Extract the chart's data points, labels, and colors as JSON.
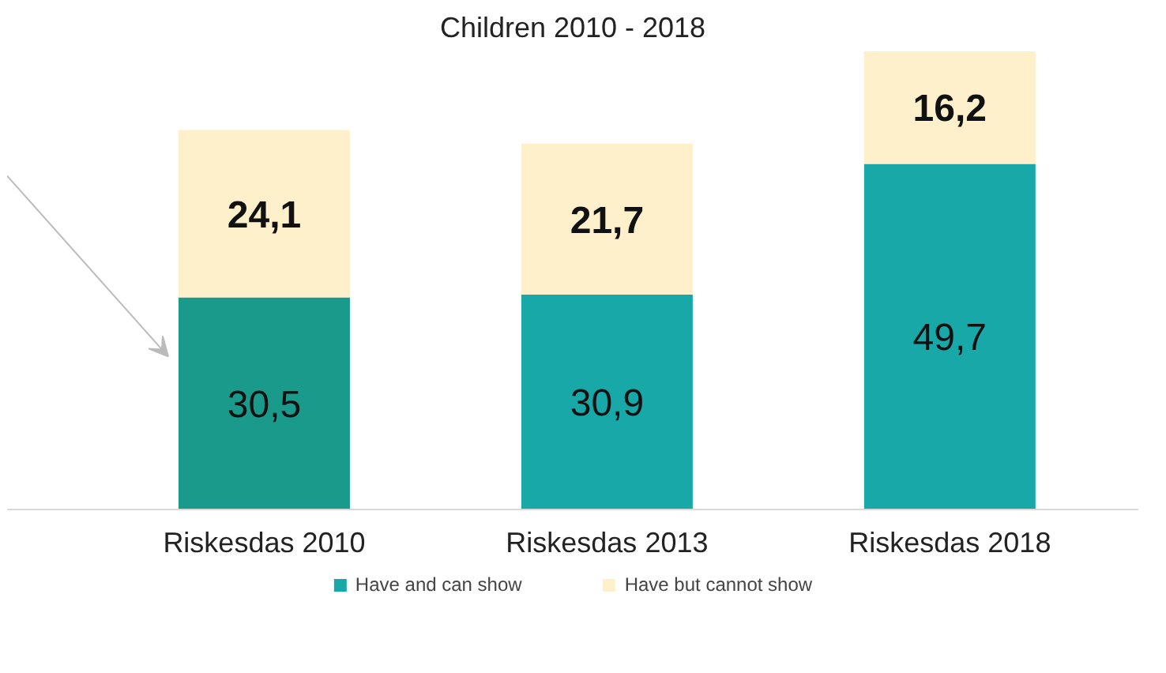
{
  "chart_data": {
    "type": "bar",
    "stacked": true,
    "title": "Children 2010 - 2018",
    "categories": [
      "Riskesdas 2010",
      "Riskesdas 2013",
      "Riskesdas 2018"
    ],
    "series": [
      {
        "name": "Have and can show",
        "color": "#18a8a8",
        "colors": [
          "#1a9a8a",
          "#18a8a8",
          "#18a8a8"
        ],
        "values": [
          30.5,
          30.9,
          49.7
        ],
        "value_labels": [
          "30,5",
          "30,9",
          "49,7"
        ]
      },
      {
        "name": "Have but cannot show",
        "color": "#fdf0cb",
        "values": [
          24.1,
          21.7,
          16.2
        ],
        "value_labels": [
          "24,1",
          "21,7",
          "16,2"
        ]
      }
    ],
    "legend": "bottom"
  }
}
